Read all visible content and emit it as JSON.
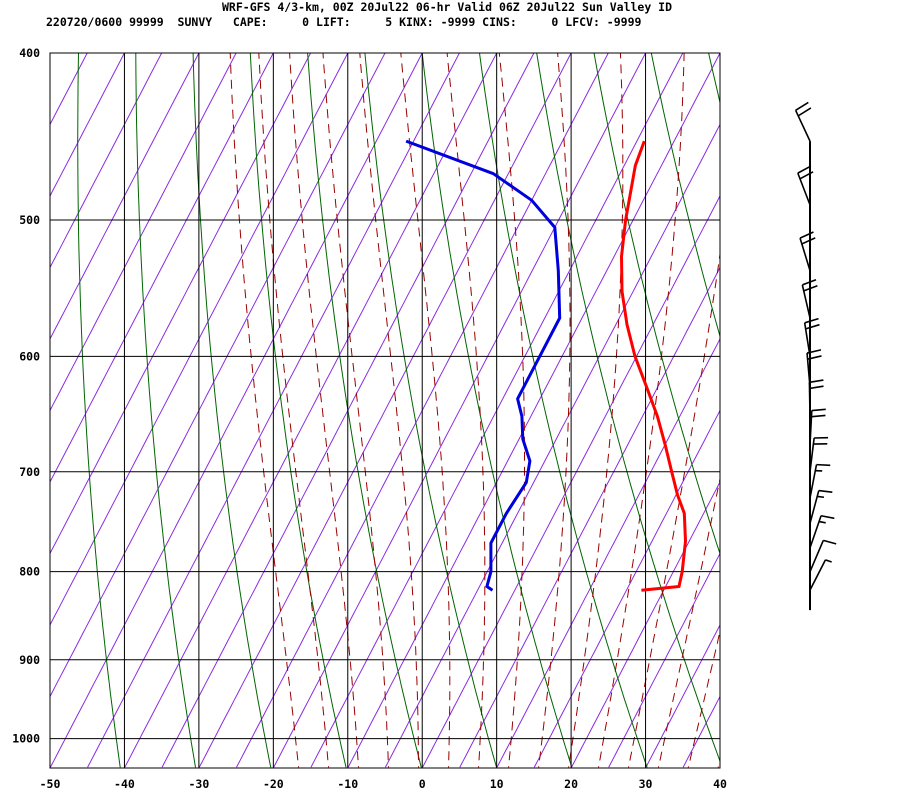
{
  "header": {
    "line1": "WRF-GFS 4/3-km, 00Z 20Jul22 06-hr Valid 06Z 20Jul22 Sun Valley ID",
    "line2": "220720/0600 99999  SUNVY   CAPE:     0 LIFT:     5 KINX: -9999 CINS:     0 LFCV: -9999"
  },
  "chart_data": {
    "type": "line",
    "title": "WRF-GFS 4/3-km, 00Z 20Jul22 06-hr Valid 06Z 20Jul22 Sun Valley ID",
    "xlabel": "",
    "ylabel": "",
    "x_ticks": [
      "-50",
      "-40",
      "-30",
      "-20",
      "-10",
      "0",
      "10",
      "20",
      "30",
      "40"
    ],
    "y_ticks": [
      "400",
      "500",
      "600",
      "700",
      "800",
      "900",
      "1000"
    ],
    "xlim": [
      -50,
      40
    ],
    "ylim": [
      1040,
      400
    ],
    "y_scale": "log",
    "grid": true,
    "colors": {
      "temperature": "#ff0000",
      "dewpoint": "#0000dd",
      "isotherm": "#8a2be2",
      "dry_adiabat": "#006400",
      "moist_adiabat": "#990000",
      "grid": "#000000"
    },
    "series": [
      {
        "key": "temperature",
        "points": [
          [
            17,
            820
          ],
          [
            21.8,
            816
          ],
          [
            21.2,
            800
          ],
          [
            19.5,
            768
          ],
          [
            17.4,
            740
          ],
          [
            15.2,
            722
          ],
          [
            12.8,
            700
          ],
          [
            10,
            675
          ],
          [
            7,
            650
          ],
          [
            3.5,
            625
          ],
          [
            -0.2,
            600
          ],
          [
            -3.5,
            575
          ],
          [
            -6.5,
            550
          ],
          [
            -9,
            525
          ],
          [
            -11,
            500
          ],
          [
            -12.4,
            480
          ],
          [
            -13.5,
            465
          ],
          [
            -14,
            450
          ]
        ]
      },
      {
        "key": "dewpoint",
        "points": [
          [
            -3,
            820
          ],
          [
            -4,
            816
          ],
          [
            -4.5,
            800
          ],
          [
            -6.5,
            770
          ],
          [
            -6.5,
            740
          ],
          [
            -6,
            710
          ],
          [
            -7,
            690
          ],
          [
            -9.5,
            670
          ],
          [
            -11.2,
            650
          ],
          [
            -13,
            635
          ],
          [
            -13,
            600
          ],
          [
            -13,
            570
          ],
          [
            -16.5,
            535
          ],
          [
            -20,
            505
          ],
          [
            -25,
            487
          ],
          [
            -32,
            470
          ],
          [
            -46,
            450
          ]
        ]
      }
    ],
    "wind_profile": [
      {
        "pressure": 450,
        "knots": 20
      },
      {
        "pressure": 490,
        "knots": 20
      },
      {
        "pressure": 535,
        "knots": 20
      },
      {
        "pressure": 570,
        "knots": 20
      },
      {
        "pressure": 600,
        "knots": 20
      },
      {
        "pressure": 625,
        "knots": 20
      },
      {
        "pressure": 650,
        "knots": 20
      },
      {
        "pressure": 675,
        "knots": 20
      },
      {
        "pressure": 700,
        "knots": 20
      },
      {
        "pressure": 725,
        "knots": 15
      },
      {
        "pressure": 750,
        "knots": 15
      },
      {
        "pressure": 775,
        "knots": 15
      },
      {
        "pressure": 800,
        "knots": 10
      },
      {
        "pressure": 820,
        "knots": 5
      }
    ]
  }
}
